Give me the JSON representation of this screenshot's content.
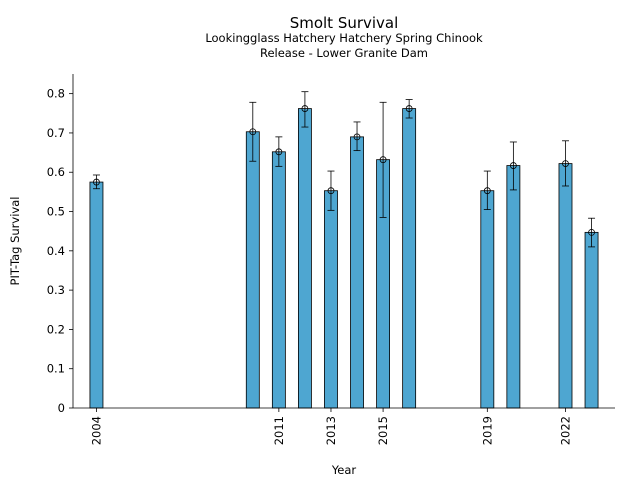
{
  "chart_data": {
    "type": "bar",
    "title": "Smolt Survival",
    "subtitle_lines": [
      "Lookingglass Hatchery Hatchery Spring Chinook",
      "Release - Lower Granite Dam"
    ],
    "xlabel": "Year",
    "ylabel": "PIT-Tag Survival",
    "x_tick_labels": [
      "2004",
      "2011",
      "2013",
      "2015",
      "2019",
      "2022"
    ],
    "y_tick_labels": [
      "0",
      "0.1",
      "0.2",
      "0.3",
      "0.4",
      "0.5",
      "0.6",
      "0.7",
      "0.8"
    ],
    "ylim": [
      0,
      0.85
    ],
    "xlim": [
      2003.1,
      2023.9
    ],
    "bar_color": "#4ea6d1",
    "bar_edge_color": "#000000",
    "grid": false,
    "points": [
      {
        "year": 2004,
        "value": 0.575,
        "lower": 0.558,
        "upper": 0.593
      },
      {
        "year": 2010,
        "value": 0.703,
        "lower": 0.628,
        "upper": 0.778
      },
      {
        "year": 2011,
        "value": 0.652,
        "lower": 0.615,
        "upper": 0.69
      },
      {
        "year": 2012,
        "value": 0.762,
        "lower": 0.715,
        "upper": 0.805
      },
      {
        "year": 2013,
        "value": 0.553,
        "lower": 0.503,
        "upper": 0.603
      },
      {
        "year": 2014,
        "value": 0.69,
        "lower": 0.655,
        "upper": 0.728
      },
      {
        "year": 2015,
        "value": 0.632,
        "lower": 0.485,
        "upper": 0.778
      },
      {
        "year": 2016,
        "value": 0.762,
        "lower": 0.738,
        "upper": 0.785
      },
      {
        "year": 2019,
        "value": 0.553,
        "lower": 0.505,
        "upper": 0.603
      },
      {
        "year": 2020,
        "value": 0.617,
        "lower": 0.555,
        "upper": 0.677
      },
      {
        "year": 2022,
        "value": 0.622,
        "lower": 0.565,
        "upper": 0.68
      },
      {
        "year": 2023,
        "value": 0.447,
        "lower": 0.41,
        "upper": 0.483
      }
    ]
  }
}
